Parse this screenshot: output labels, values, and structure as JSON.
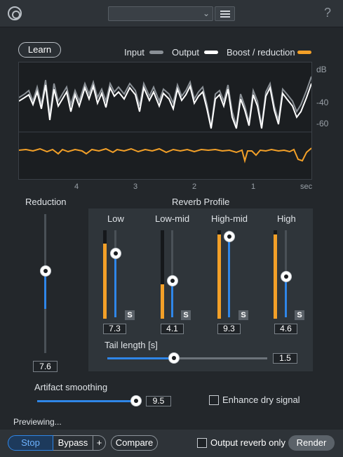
{
  "header": {
    "preset_value": "",
    "icons": [
      "logo-icon",
      "chevron-down-icon",
      "hamburger-menu-icon",
      "help-icon"
    ],
    "help_label": "?"
  },
  "display": {
    "learn_label": "Learn",
    "legend": [
      {
        "label": "Input",
        "color": "#8a9096"
      },
      {
        "label": "Output",
        "color": "#ffffff"
      },
      {
        "label": "Boost / reduction",
        "color": "#f3a028"
      }
    ],
    "db_unit": "dB",
    "db_ticks": [
      "-40",
      "-60"
    ],
    "time_ticks": [
      "4",
      "3",
      "2",
      "1"
    ],
    "time_unit": "sec"
  },
  "reduction": {
    "label": "Reduction",
    "value": "7.6",
    "level": 0.6
  },
  "reverb_profile": {
    "title": "Reverb Profile",
    "bands": [
      {
        "label": "Low",
        "value": "7.3",
        "solo": "S",
        "level": 0.73,
        "meter": 0.85
      },
      {
        "label": "Low-mid",
        "value": "4.1",
        "solo": "S",
        "level": 0.41,
        "meter": 0.39
      },
      {
        "label": "High-mid",
        "value": "9.3",
        "solo": "S",
        "level": 0.93,
        "meter": 0.95
      },
      {
        "label": "High",
        "value": "4.6",
        "solo": "S",
        "level": 0.46,
        "meter": 0.95
      }
    ],
    "tail_length": {
      "label": "Tail length [s]",
      "value": "1.5",
      "level": 0.42
    }
  },
  "artifact_smoothing": {
    "label": "Artifact smoothing",
    "value": "9.5",
    "level": 0.95
  },
  "enhance": {
    "label": "Enhance dry signal",
    "checked": false
  },
  "status": {
    "text": "Previewing..."
  },
  "transport": {
    "stop_label": "Stop",
    "bypass_label": "Bypass",
    "plus_label": "+",
    "compare_label": "Compare",
    "output_reverb_label": "Output reverb only",
    "output_reverb_checked": false,
    "render_label": "Render"
  },
  "colors": {
    "accent_blue": "#2f86e8",
    "meter_orange": "#f3a028",
    "background": "#23272b"
  }
}
